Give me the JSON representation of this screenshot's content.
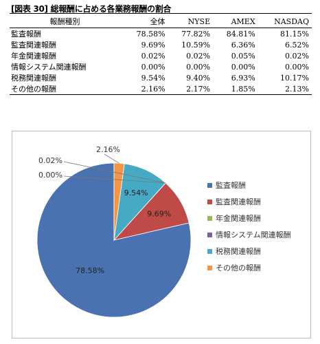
{
  "title": "[図表 30] 総報酬に占める各業務報酬の割合",
  "table": {
    "headers": [
      "報酬種別",
      "全体",
      "NYSE",
      "AMEX",
      "NASDAQ"
    ],
    "rows": [
      [
        "監査報酬",
        "78.58%",
        "77.82%",
        "84.81%",
        "81.15%"
      ],
      [
        "監査関連報酬",
        "9.69%",
        "10.59%",
        "6.36%",
        "6.52%"
      ],
      [
        "年金関連報酬",
        "0.02%",
        "0.02%",
        "0.05%",
        "0.02%"
      ],
      [
        "情報システム関連報酬",
        "0.00%",
        "0.00%",
        "0.00%",
        "0.00%"
      ],
      [
        "税務関連報酬",
        "9.54%",
        "9.40%",
        "6.93%",
        "10.17%"
      ],
      [
        "その他の報酬",
        "2.16%",
        "2.17%",
        "1.85%",
        "2.13%"
      ]
    ]
  },
  "chart_data": {
    "type": "pie",
    "categories": [
      "監査報酬",
      "監査関連報酬",
      "年金関連報酬",
      "情報システム関連報酬",
      "税務関連報酬",
      "その他の報酬"
    ],
    "values": [
      78.58,
      9.69,
      0.02,
      0.0,
      9.54,
      2.16
    ],
    "labels": [
      "78.58%",
      "9.69%",
      "0.02%",
      "0.00%",
      "9.54%",
      "2.16%"
    ],
    "colors": [
      "#4a72b0",
      "#be4b48",
      "#98b954",
      "#7d5fa0",
      "#46aac5",
      "#f59646"
    ],
    "legend_position": "right"
  }
}
